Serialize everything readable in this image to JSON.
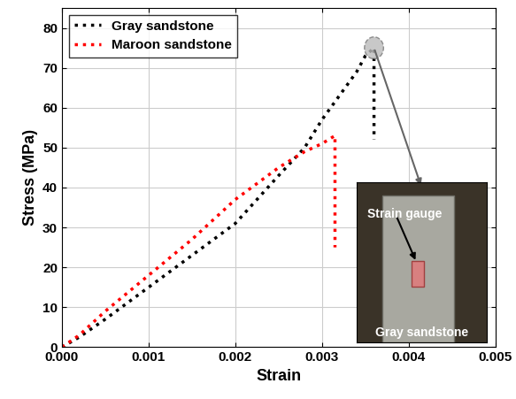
{
  "chart_data": {
    "type": "line",
    "xlabel": "Strain",
    "ylabel": "Stress (MPa)",
    "series": [
      {
        "name": "Gray sandstone",
        "color": "#000000",
        "line_style": "dotted",
        "x": [
          0.0,
          0.0002,
          0.0005,
          0.001,
          0.0015,
          0.002,
          0.0025,
          0.0028,
          0.003,
          0.0032,
          0.0034,
          0.0035,
          0.0036,
          0.0036
        ],
        "values": [
          0,
          2.5,
          7,
          15,
          23,
          31,
          43,
          50,
          57,
          63,
          69,
          73,
          75,
          52
        ]
      },
      {
        "name": "Maroon sandstone",
        "color": "#ff0000",
        "line_style": "dotted",
        "x": [
          0.0,
          0.0002,
          0.0005,
          0.001,
          0.0015,
          0.002,
          0.0025,
          0.0028,
          0.003,
          0.00315,
          0.00315
        ],
        "values": [
          0,
          3,
          9,
          18,
          27,
          37,
          45,
          49,
          51,
          53,
          25
        ]
      }
    ],
    "xlim": [
      0,
      0.005
    ],
    "xticks": [
      {
        "value": 0,
        "label": "0.000"
      },
      {
        "value": 0.001,
        "label": "0.001"
      },
      {
        "value": 0.002,
        "label": "0.002"
      },
      {
        "value": 0.003,
        "label": "0.003"
      },
      {
        "value": 0.004,
        "label": "0.004"
      },
      {
        "value": 0.005,
        "label": "0.005"
      }
    ],
    "ylim": [
      0,
      85
    ],
    "yticks": [
      0,
      10,
      20,
      30,
      40,
      50,
      60,
      70,
      80
    ],
    "grid": true,
    "legend": "upper left",
    "annotations": [
      "Strain gauge",
      "Gray sandstone"
    ]
  }
}
